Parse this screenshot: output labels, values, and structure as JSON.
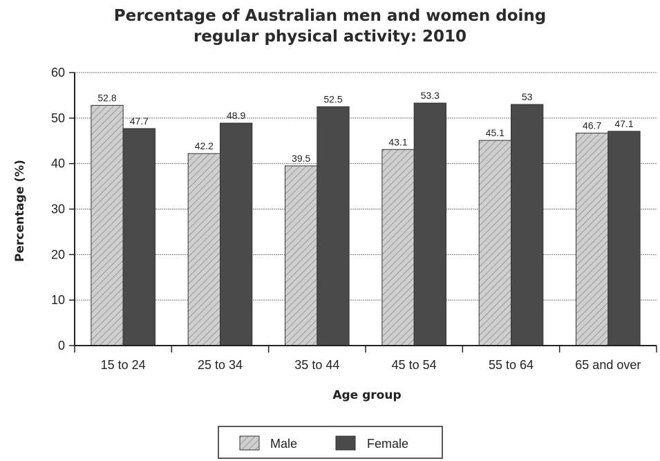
{
  "chart_data": {
    "type": "bar",
    "title": "Percentage of Australian men and women doing regular physical activity: 2010",
    "title_lines": [
      "Percentage of Australian men and women doing",
      "regular physical activity: 2010"
    ],
    "xlabel": "Age group",
    "ylabel": "Percentage (%)",
    "ylim": [
      0,
      60
    ],
    "yticks": [
      0,
      10,
      20,
      30,
      40,
      50,
      60
    ],
    "categories": [
      "15 to 24",
      "25 to 34",
      "35 to 44",
      "45 to 54",
      "55 to 64",
      "65 and over"
    ],
    "series": [
      {
        "name": "Male",
        "values": [
          52.8,
          42.2,
          39.5,
          43.1,
          45.1,
          46.7
        ],
        "color": "#c4c4c4",
        "pattern": "diagonal-hatch"
      },
      {
        "name": "Female",
        "values": [
          47.7,
          48.9,
          52.5,
          53.3,
          53,
          47.1
        ],
        "color": "#4a4a4a",
        "pattern": "solid"
      }
    ],
    "data_labels": [
      [
        "52.8",
        "42.2",
        "39.5",
        "43.1",
        "45.1",
        "46.7"
      ],
      [
        "47.7",
        "48.9",
        "52.5",
        "53.3",
        "53",
        "47.1"
      ]
    ],
    "grid": true,
    "legend_position": "bottom"
  }
}
